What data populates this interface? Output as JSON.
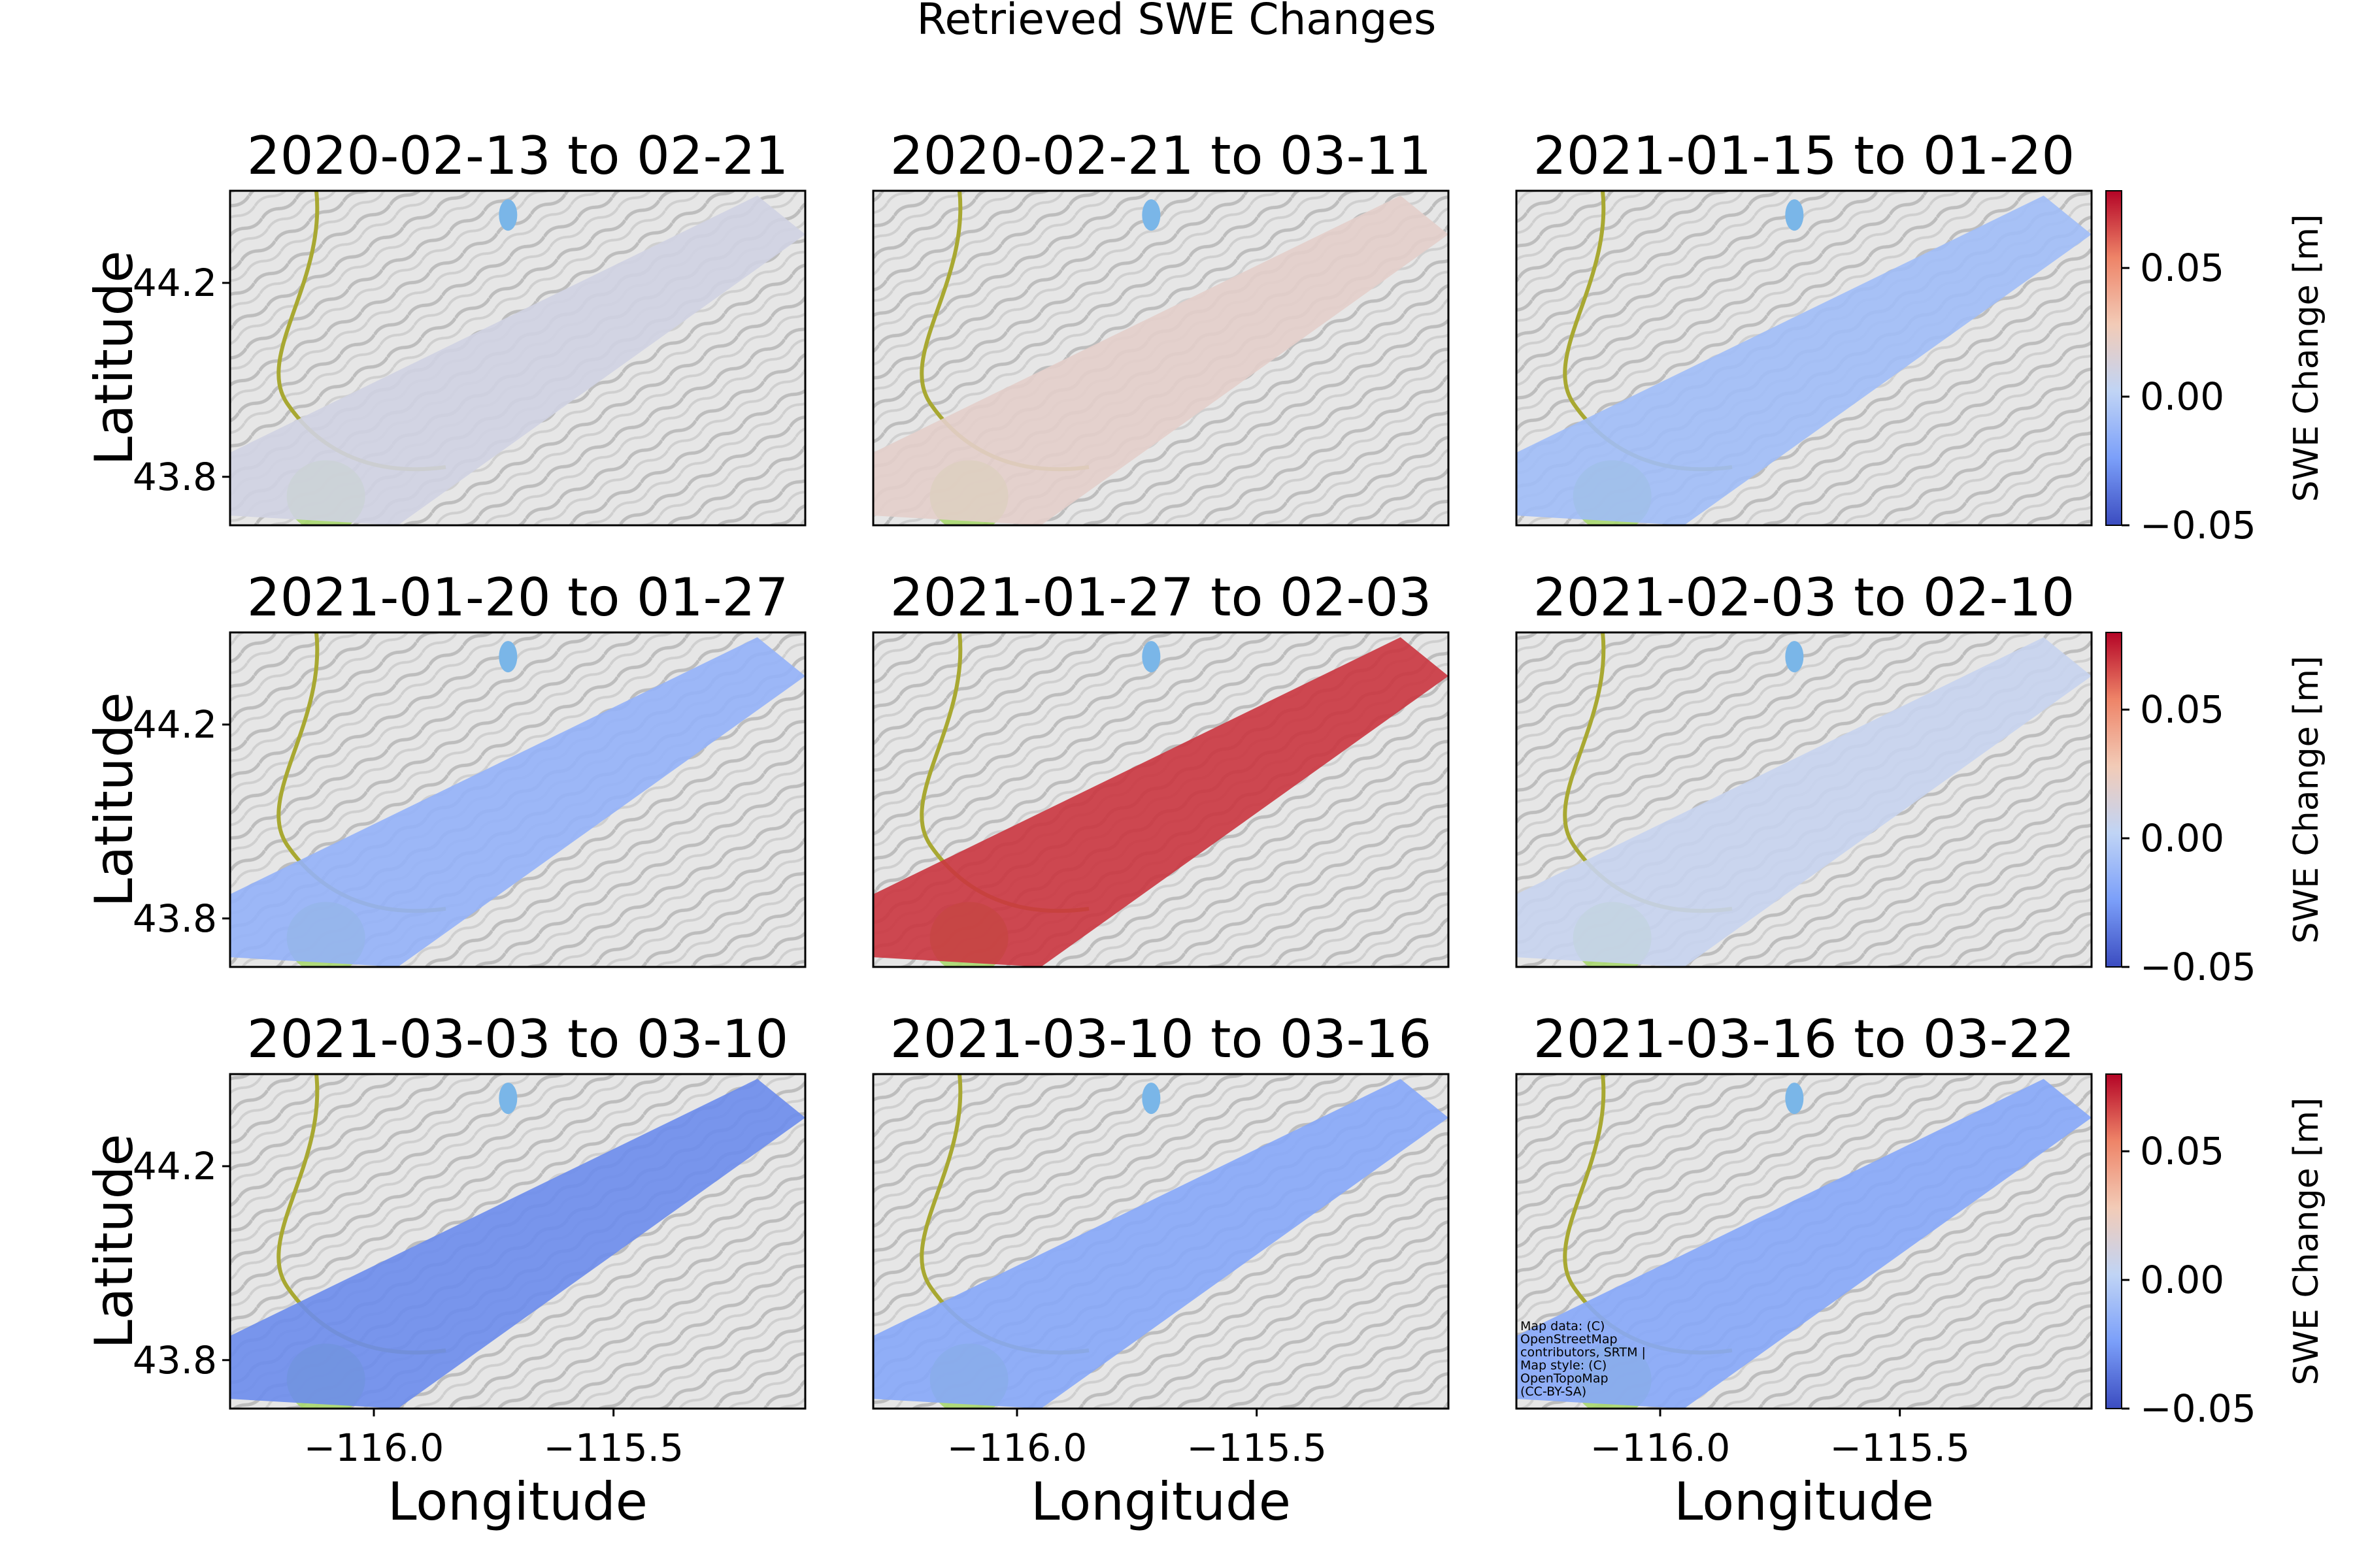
{
  "figure": {
    "title": "Retrieved SWE Changes",
    "attribution": [
      "Map data: (C)",
      "OpenStreetMap",
      "contributors, SRTM |",
      "Map style: (C)",
      "OpenTopoMap",
      "(CC-BY-SA)"
    ]
  },
  "chart_data": {
    "type": "heatmap",
    "xlabel": "Longitude",
    "ylabel": "Latitude",
    "x_ticks": [
      -116.0,
      -115.5
    ],
    "x_tick_labels": [
      "−116.0",
      "−115.5"
    ],
    "y_ticks": [
      43.8,
      44.2
    ],
    "y_tick_labels": [
      "43.8",
      "44.2"
    ],
    "xlim": [
      -116.3,
      -115.1
    ],
    "ylim": [
      43.7,
      44.39
    ],
    "colorbar": {
      "label": "SWE Change [m]",
      "range": [
        -0.05,
        0.08
      ],
      "ticks": [
        0.05,
        0.0,
        -0.05
      ],
      "tick_labels": [
        "0.05",
        "0.00",
        "−0.05"
      ],
      "colormap": [
        "#3b4cc0",
        "#7b9ff9",
        "#c0d4f5",
        "#f2cbb7",
        "#ee8468",
        "#b40426"
      ]
    },
    "panels": [
      {
        "title": "2020-02-13 to 02-21",
        "mean_swe_change": 0.01
      },
      {
        "title": "2020-02-21 to 03-11",
        "mean_swe_change": 0.02
      },
      {
        "title": "2021-01-15 to 01-20",
        "mean_swe_change": -0.01
      },
      {
        "title": "2021-01-20 to 01-27",
        "mean_swe_change": -0.015
      },
      {
        "title": "2021-01-27 to 02-03",
        "mean_swe_change": 0.07
      },
      {
        "title": "2021-02-03 to 02-10",
        "mean_swe_change": 0.005
      },
      {
        "title": "2021-03-03 to 03-10",
        "mean_swe_change": -0.03
      },
      {
        "title": "2021-03-10 to 03-16",
        "mean_swe_change": -0.02
      },
      {
        "title": "2021-03-16 to 03-22",
        "mean_swe_change": -0.02
      }
    ]
  }
}
